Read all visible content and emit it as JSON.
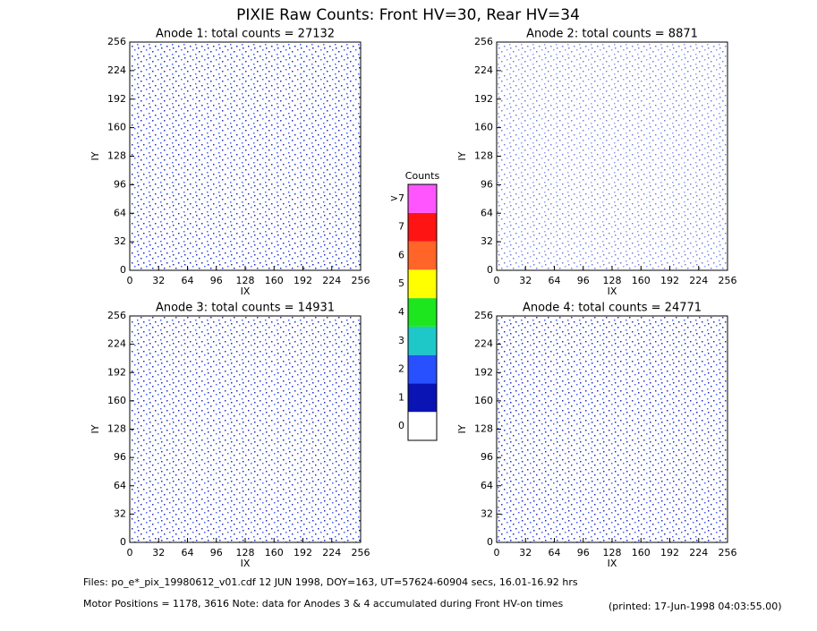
{
  "title": "PIXIE Raw Counts:  Front HV=30, Rear HV=34",
  "chart_data": [
    {
      "type": "heatmap",
      "title": "Anode 1: total counts = 27132",
      "xlabel": "IX",
      "ylabel": "IY",
      "xlim": [
        0,
        256
      ],
      "ylim": [
        0,
        256
      ],
      "xticks": [
        0,
        32,
        64,
        96,
        128,
        160,
        192,
        224,
        256
      ],
      "yticks": [
        0,
        32,
        64,
        96,
        128,
        160,
        192,
        224,
        256
      ]
    },
    {
      "type": "heatmap",
      "title": "Anode 2: total counts = 8871",
      "xlabel": "IX",
      "ylabel": "IY",
      "xlim": [
        0,
        256
      ],
      "ylim": [
        0,
        256
      ],
      "xticks": [
        0,
        32,
        64,
        96,
        128,
        160,
        192,
        224,
        256
      ],
      "yticks": [
        0,
        32,
        64,
        96,
        128,
        160,
        192,
        224,
        256
      ]
    },
    {
      "type": "heatmap",
      "title": "Anode 3: total counts = 14931",
      "xlabel": "IX",
      "ylabel": "IY",
      "xlim": [
        0,
        256
      ],
      "ylim": [
        0,
        256
      ],
      "xticks": [
        0,
        32,
        64,
        96,
        128,
        160,
        192,
        224,
        256
      ],
      "yticks": [
        0,
        32,
        64,
        96,
        128,
        160,
        192,
        224,
        256
      ]
    },
    {
      "type": "heatmap",
      "title": "Anode 4: total counts = 24771",
      "xlabel": "IX",
      "ylabel": "IY",
      "xlim": [
        0,
        256
      ],
      "ylim": [
        0,
        256
      ],
      "xticks": [
        0,
        32,
        64,
        96,
        128,
        160,
        192,
        224,
        256
      ],
      "yticks": [
        0,
        32,
        64,
        96,
        128,
        160,
        192,
        224,
        256
      ]
    }
  ],
  "colorbar": {
    "title": "Counts",
    "labels": [
      "0",
      "1",
      "2",
      "3",
      "4",
      "5",
      "6",
      "7",
      ">7"
    ],
    "colors": [
      "#ffffff",
      "#0a14b4",
      "#2850ff",
      "#1ec8c8",
      "#1ee61e",
      "#ffff00",
      "#ff6428",
      "#ff1414",
      "#ff55ff"
    ]
  },
  "footer": {
    "files": "Files: po_e*_pix_19980612_v01.cdf    12 JUN 1998, DOY=163, UT=57624-60904 secs, 16.01-16.92 hrs",
    "motor": "Motor Positions = 1178, 3616   Note: data for Anodes 3 & 4 accumulated during Front HV-on times",
    "printed": "(printed: 17-Jun-1998 04:03:55.00)"
  }
}
